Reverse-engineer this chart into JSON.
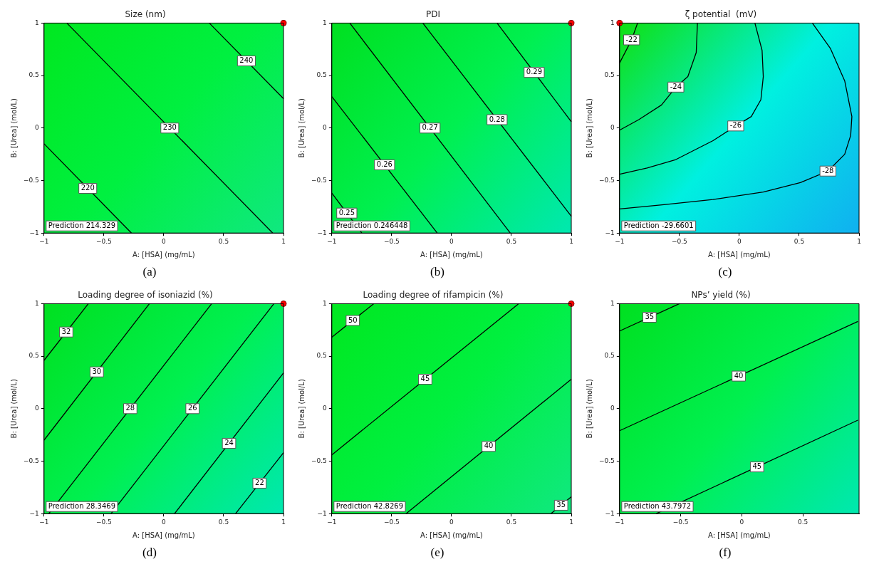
{
  "chart_data": [
    {
      "type": "line",
      "title": "Size (nm)",
      "xlabel": "A: [HSA] (mg/mL)",
      "ylabel": "B: [Urea] (mol/L)",
      "xlim": [
        -1,
        1
      ],
      "ylim": [
        -1,
        1
      ],
      "xticks": [
        -1,
        -0.5,
        0,
        0.5,
        1
      ],
      "yticks": [
        -1,
        -0.5,
        0,
        0.5,
        1
      ],
      "grid": false,
      "marker": "none",
      "line_style": "solid",
      "series": [
        {
          "name": "240",
          "color": "#000000",
          "x": [
            0.38,
            1
          ],
          "values": [
            1,
            0.28
          ]
        },
        {
          "name": "230",
          "color": "#000000",
          "x": [
            -0.81,
            0.91
          ],
          "values": [
            1,
            -1
          ]
        },
        {
          "name": "220",
          "color": "#000000",
          "x": [
            -1,
            -0.27
          ],
          "values": [
            -0.15,
            -1
          ]
        },
        {
          "type": "scatter",
          "marker": "circle",
          "color": "#ff0000",
          "x": [
            1
          ],
          "values": [
            1
          ]
        }
      ],
      "annotations": [
        "Prediction 214.329",
        "(a)"
      ]
    },
    {
      "type": "line",
      "title": "PDI",
      "xlabel": "A: [HSA] (mg/mL)",
      "ylabel": "B: [Urea] (mol/L)",
      "xlim": [
        -1,
        1
      ],
      "ylim": [
        -1,
        1
      ],
      "xticks": [
        -1,
        -0.5,
        0,
        0.5,
        1
      ],
      "yticks": [
        -1,
        -0.5,
        0,
        0.5,
        1
      ],
      "grid": false,
      "marker": "none",
      "line_style": "solid",
      "series": [
        {
          "name": "0.29",
          "color": "#000000",
          "x": [
            0.38,
            1
          ],
          "values": [
            1,
            0.06
          ]
        },
        {
          "name": "0.28",
          "color": "#000000",
          "x": [
            -0.24,
            1
          ],
          "values": [
            1,
            -0.84
          ]
        },
        {
          "name": "0.27",
          "color": "#000000",
          "x": [
            -0.85,
            0.49
          ],
          "values": [
            1,
            -1
          ]
        },
        {
          "name": "0.26",
          "color": "#000000",
          "x": [
            -1,
            -0.12
          ],
          "values": [
            0.3,
            -1
          ]
        },
        {
          "name": "0.25",
          "color": "#000000",
          "x": [
            -1,
            -0.75
          ],
          "values": [
            -0.62,
            -1
          ]
        },
        {
          "type": "scatter",
          "marker": "circle",
          "color": "#ff0000",
          "x": [
            1
          ],
          "values": [
            1
          ]
        }
      ],
      "annotations": [
        "Prediction 0.246448",
        "(b)"
      ]
    },
    {
      "type": "line",
      "title": "ζ potential  (mV)",
      "xlabel": "A: [HSA] (mg/mL)",
      "ylabel": "B: [Urea] (mol/L)",
      "xlim": [
        -1,
        1
      ],
      "ylim": [
        -1,
        1
      ],
      "xticks": [
        -1,
        -0.5,
        0,
        0.5,
        1
      ],
      "yticks": [
        -1,
        -0.5,
        0,
        0.5,
        1
      ],
      "grid": false,
      "marker": "none",
      "line_style": "solid",
      "series": [
        {
          "name": "-22",
          "color": "#000000",
          "x": [
            -0.85,
            -0.9,
            -1
          ],
          "values": [
            1,
            0.84,
            0.62
          ]
        },
        {
          "name": "-24",
          "color": "#000000",
          "x": [
            -0.35,
            -0.36,
            -0.43,
            -0.53,
            -0.65,
            -0.84,
            -1
          ],
          "values": [
            1,
            0.72,
            0.49,
            0.39,
            0.22,
            0.08,
            -0.02
          ]
        },
        {
          "name": "-26",
          "color": "#000000",
          "x": [
            0.13,
            0.19,
            0.2,
            0.18,
            0.1,
            -0.03,
            -0.22,
            -0.53,
            -0.77,
            -1
          ],
          "values": [
            1,
            0.74,
            0.49,
            0.27,
            0.11,
            0.02,
            -0.12,
            -0.3,
            -0.38,
            -0.44
          ]
        },
        {
          "name": "-28",
          "color": "#000000",
          "x": [
            0.61,
            0.76,
            0.88,
            0.94,
            0.93,
            0.88,
            0.74,
            0.51,
            0.2,
            -0.22,
            -0.63,
            -1
          ],
          "values": [
            1,
            0.76,
            0.45,
            0.11,
            -0.07,
            -0.25,
            -0.41,
            -0.52,
            -0.61,
            -0.68,
            -0.73,
            -0.77
          ]
        },
        {
          "type": "scatter",
          "marker": "circle",
          "color": "#ff0000",
          "x": [
            -1
          ],
          "values": [
            1
          ]
        }
      ],
      "annotations": [
        "Prediction -29.6601",
        "(c)"
      ]
    },
    {
      "type": "line",
      "title": "Loading degree of isoniazid (%)",
      "xlabel": "A: [HSA] (mg/mL)",
      "ylabel": "B: [Urea] (mol/L)",
      "xlim": [
        -1,
        1
      ],
      "ylim": [
        -1,
        1
      ],
      "xticks": [
        -1,
        -0.5,
        0,
        0.5,
        1
      ],
      "yticks": [
        -1,
        -0.5,
        0,
        0.5,
        1
      ],
      "grid": false,
      "marker": "none",
      "line_style": "solid",
      "series": [
        {
          "name": "32",
          "color": "#000000",
          "x": [
            -1,
            -0.63
          ],
          "values": [
            0.46,
            1
          ]
        },
        {
          "name": "30",
          "color": "#000000",
          "x": [
            -1,
            -0.12
          ],
          "values": [
            -0.3,
            1
          ]
        },
        {
          "name": "28",
          "color": "#000000",
          "x": [
            -0.96,
            0.4
          ],
          "values": [
            -1,
            1
          ]
        },
        {
          "name": "26",
          "color": "#000000",
          "x": [
            -0.44,
            0.92
          ],
          "values": [
            -1,
            1
          ]
        },
        {
          "name": "24",
          "color": "#000000",
          "x": [
            0.09,
            1
          ],
          "values": [
            -1,
            0.34
          ]
        },
        {
          "name": "22",
          "color": "#000000",
          "x": [
            0.6,
            1
          ],
          "values": [
            -1,
            -0.42
          ]
        },
        {
          "type": "scatter",
          "marker": "circle",
          "color": "#ff0000",
          "x": [
            1
          ],
          "values": [
            1
          ]
        }
      ],
      "annotations": [
        "Prediction 28.3469",
        "(d)"
      ]
    },
    {
      "type": "line",
      "title": "Loading degree of rifampicin (%)",
      "xlabel": "A: [HSA] (mg/mL)",
      "ylabel": "B: [Urea] (mol/L)",
      "xlim": [
        -1,
        1
      ],
      "ylim": [
        -1,
        1
      ],
      "xticks": [
        -1,
        -0.5,
        0,
        0.5,
        1
      ],
      "yticks": [
        -1,
        -0.5,
        0,
        0.5,
        1
      ],
      "grid": false,
      "marker": "none",
      "line_style": "solid",
      "series": [
        {
          "name": "50",
          "color": "#000000",
          "x": [
            -1,
            -0.65
          ],
          "values": [
            0.68,
            1
          ]
        },
        {
          "name": "45",
          "color": "#000000",
          "x": [
            -1,
            0.56
          ],
          "values": [
            -0.44,
            1
          ]
        },
        {
          "name": "40",
          "color": "#000000",
          "x": [
            -0.38,
            1
          ],
          "values": [
            -1,
            0.28
          ]
        },
        {
          "name": "35",
          "color": "#000000",
          "x": [
            0.83,
            1
          ],
          "values": [
            -1,
            -0.84
          ]
        },
        {
          "type": "scatter",
          "marker": "circle",
          "color": "#ff0000",
          "x": [
            1
          ],
          "values": [
            1
          ]
        }
      ],
      "annotations": [
        "Prediction 42.8269",
        "(e)"
      ]
    },
    {
      "type": "line",
      "title": "NPs’ yield (%)",
      "xlabel": "A: [HSA] (mg/mL)",
      "ylabel": "B: [Urea] (mol/L)",
      "xlim": [
        -1,
        0.96
      ],
      "ylim": [
        -1,
        1
      ],
      "xticks": [
        -1,
        -0.5,
        0,
        0.5
      ],
      "yticks": [
        -1,
        -0.5,
        0,
        0.5,
        1
      ],
      "grid": false,
      "marker": "none",
      "line_style": "solid",
      "series": [
        {
          "name": "35",
          "color": "#000000",
          "x": [
            -1,
            -0.51
          ],
          "values": [
            0.74,
            1
          ]
        },
        {
          "name": "40",
          "color": "#000000",
          "x": [
            -1,
            0.95
          ],
          "values": [
            -0.21,
            0.83
          ]
        },
        {
          "name": "45",
          "color": "#000000",
          "x": [
            -0.7,
            0.95
          ],
          "values": [
            -1,
            -0.11
          ]
        }
      ],
      "annotations": [
        "Prediction 43.7972",
        "(f)"
      ]
    }
  ]
}
